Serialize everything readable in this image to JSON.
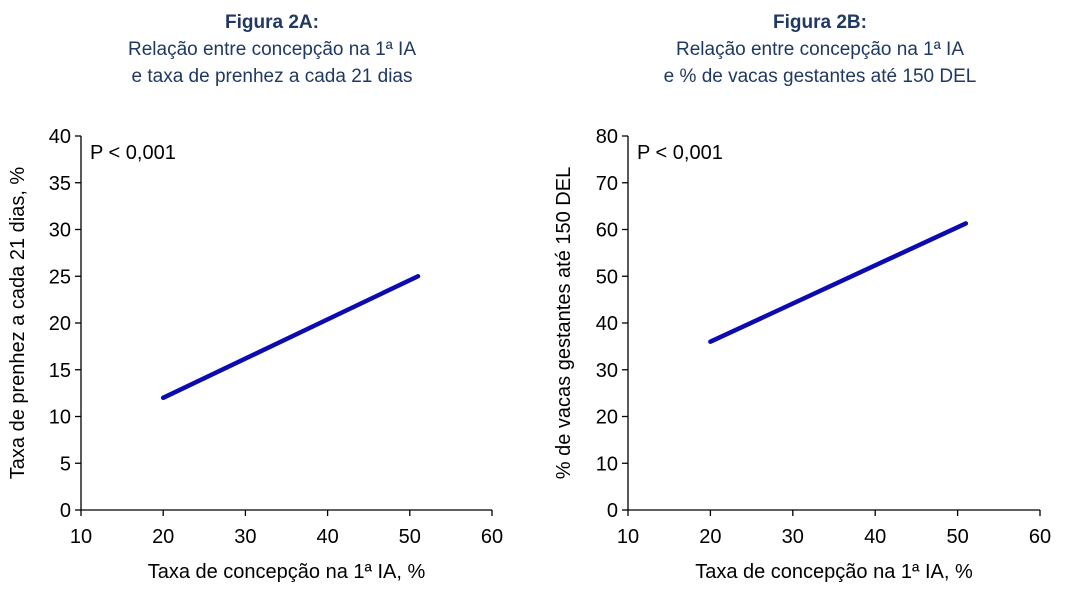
{
  "chart_data": [
    {
      "type": "line",
      "title": "Figura 2A:",
      "subtitle": [
        "Relação entre concepção na 1ª IA",
        "e taxa de prenhez a cada 21 dias"
      ],
      "xlabel": "Taxa de concepção na 1ª IA, %",
      "ylabel": "Taxa de prenhez a cada 21 dias, %",
      "xlim": [
        10,
        60
      ],
      "ylim": [
        0,
        40
      ],
      "xticks": [
        10,
        20,
        30,
        40,
        50,
        60
      ],
      "yticks": [
        0,
        5,
        10,
        15,
        20,
        25,
        30,
        35,
        40
      ],
      "annotation": "P < 0,001",
      "grid": false,
      "series": [
        {
          "x": [
            20,
            51
          ],
          "y": [
            12,
            25
          ],
          "color": "#0b0bb0"
        }
      ]
    },
    {
      "type": "line",
      "title": "Figura 2B:",
      "subtitle": [
        "Relação entre concepção na 1ª IA",
        "e % de vacas gestantes até 150 DEL"
      ],
      "xlabel": "Taxa de concepção na 1ª IA, %",
      "ylabel": "% de vacas gestantes até 150 DEL",
      "xlim": [
        10,
        60
      ],
      "ylim": [
        0,
        80
      ],
      "xticks": [
        10,
        20,
        30,
        40,
        50,
        60
      ],
      "yticks": [
        0,
        10,
        20,
        30,
        40,
        50,
        60,
        70,
        80
      ],
      "annotation": "P < 0,001",
      "grid": false,
      "series": [
        {
          "x": [
            20,
            51
          ],
          "y": [
            36,
            61.3
          ],
          "color": "#0b0bb0"
        }
      ]
    }
  ]
}
